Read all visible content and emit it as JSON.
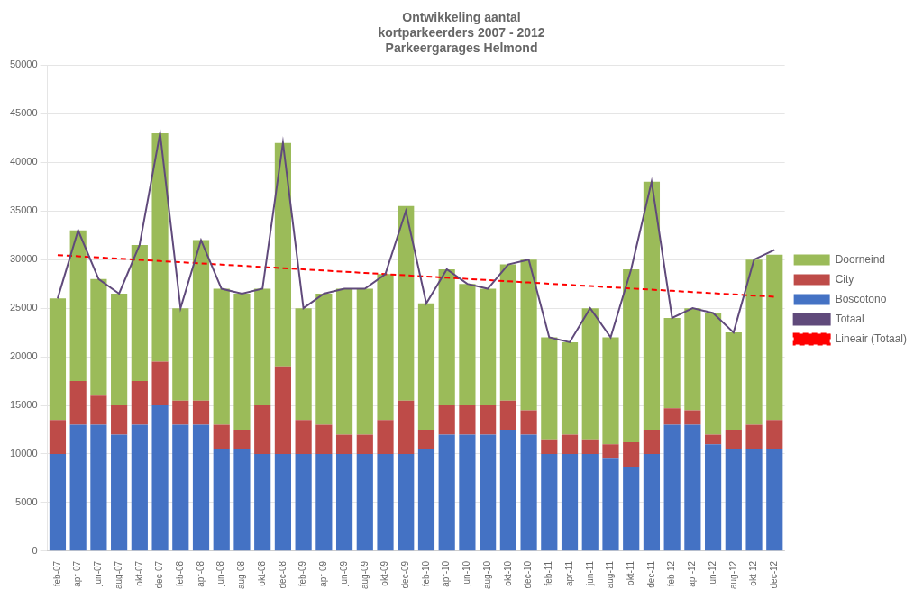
{
  "chart_data": {
    "type": "bar",
    "title": "Ontwikkeling aantal\nkortparkeerders 2007 - 2012\nParkeergarages Helmond",
    "categories": [
      "feb-07",
      "apr-07",
      "jun-07",
      "aug-07",
      "okt-07",
      "dec-07",
      "feb-08",
      "apr-08",
      "jun-08",
      "aug-08",
      "okt-08",
      "dec-08",
      "feb-09",
      "apr-09",
      "jun-09",
      "aug-09",
      "okt-09",
      "dec-09",
      "feb-10",
      "apr-10",
      "jun-10",
      "aug-10",
      "okt-10",
      "dec-10",
      "feb-11",
      "apr-11",
      "jun-11",
      "aug-11",
      "okt-11",
      "dec-11",
      "feb-12",
      "apr-12",
      "jun-12",
      "aug-12",
      "okt-12",
      "dec-12"
    ],
    "series": [
      {
        "name": "Doorneind",
        "type": "bar",
        "color": "#9bbb59",
        "values": [
          12500,
          15500,
          12000,
          11500,
          14000,
          23500,
          9500,
          16500,
          14000,
          14000,
          12000,
          23000,
          11500,
          13500,
          15000,
          15000,
          15000,
          20000,
          13000,
          14000,
          12500,
          12000,
          14000,
          15500,
          10500,
          9500,
          13500,
          11000,
          17800,
          25500,
          9300,
          10500,
          12500,
          10000,
          17000,
          17000
        ]
      },
      {
        "name": "City",
        "type": "bar",
        "color": "#be4b48",
        "values": [
          3500,
          4500,
          3000,
          3000,
          4500,
          4500,
          2500,
          2500,
          2500,
          2000,
          5000,
          9000,
          3500,
          3000,
          2000,
          2000,
          3500,
          5500,
          2000,
          3000,
          3000,
          3000,
          3000,
          2500,
          1500,
          2000,
          1500,
          1500,
          2500,
          2500,
          1700,
          1500,
          1000,
          2000,
          2500,
          3000
        ]
      },
      {
        "name": "Boscotono",
        "type": "bar",
        "color": "#4472c4",
        "values": [
          10000,
          13000,
          13000,
          12000,
          13000,
          15000,
          13000,
          13000,
          10500,
          10500,
          10000,
          10000,
          10000,
          10000,
          10000,
          10000,
          10000,
          10000,
          10500,
          12000,
          12000,
          12000,
          12500,
          12000,
          10000,
          10000,
          10000,
          9500,
          8700,
          10000,
          13000,
          13000,
          11000,
          10500,
          10500,
          10500
        ]
      },
      {
        "name": "Totaal",
        "type": "line",
        "line_style": "solid",
        "color": "#604a7b",
        "values": [
          26000,
          33000,
          28000,
          26500,
          31500,
          43000,
          25000,
          32000,
          27000,
          26500,
          27000,
          42000,
          25000,
          26500,
          27000,
          27000,
          28500,
          35000,
          25500,
          29000,
          27500,
          27000,
          29500,
          30000,
          22000,
          21500,
          25000,
          22000,
          29000,
          38000,
          24000,
          25000,
          24500,
          22500,
          30000,
          31000
        ]
      },
      {
        "name": "Lineair (Totaal)",
        "type": "line",
        "line_style": "dashed",
        "color": "#ff0000",
        "values": [
          30467.0,
          30344.3,
          30221.5,
          30098.8,
          29976.1,
          29853.4,
          29730.7,
          29608.0,
          29485.2,
          29362.5,
          29239.8,
          29117.1,
          28994.4,
          28871.7,
          28748.9,
          28626.2,
          28503.5,
          28380.8,
          28258.1,
          28135.4,
          28012.7,
          27889.9,
          27767.2,
          27644.5,
          27521.8,
          27399.1,
          27276.4,
          27153.6,
          27030.9,
          26908.2,
          26785.5,
          26662.8,
          26540.1,
          26417.4,
          26294.6,
          26171.9
        ]
      }
    ],
    "stacked": true,
    "ylim": [
      0,
      50000
    ],
    "yticks": [
      0,
      5000,
      10000,
      15000,
      20000,
      25000,
      30000,
      35000,
      40000,
      45000,
      50000
    ],
    "grid": true,
    "legend": "right"
  }
}
